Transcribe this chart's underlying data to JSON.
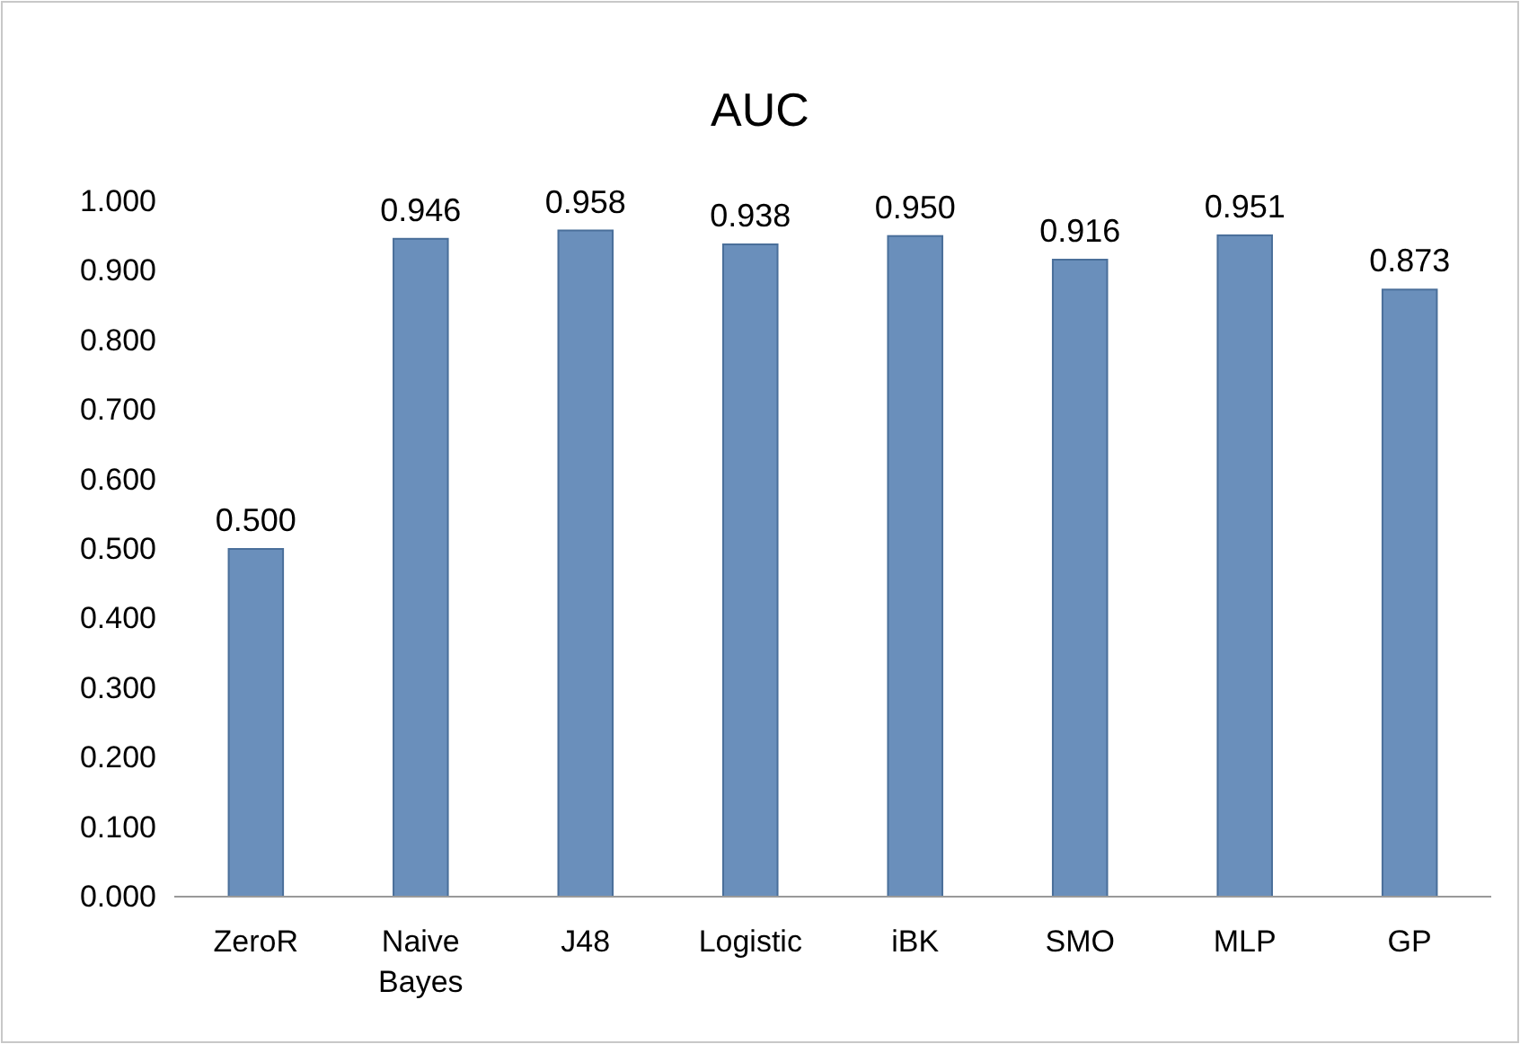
{
  "chart_data": {
    "type": "bar",
    "title": "AUC",
    "categories": [
      "ZeroR",
      "Naive Bayes",
      "J48",
      "Logistic",
      "iBK",
      "SMO",
      "MLP",
      "GP"
    ],
    "values": [
      0.5,
      0.946,
      0.958,
      0.938,
      0.95,
      0.916,
      0.951,
      0.873
    ],
    "value_labels": [
      "0.500",
      "0.946",
      "0.958",
      "0.938",
      "0.950",
      "0.916",
      "0.951",
      "0.873"
    ],
    "color": "#6a8fbb",
    "ylim": [
      0,
      1
    ],
    "yticks": [
      {
        "value": 0,
        "label": "0.000"
      },
      {
        "value": 0.1,
        "label": "0.100"
      },
      {
        "value": 0.2,
        "label": "0.200"
      },
      {
        "value": 0.3,
        "label": "0.300"
      },
      {
        "value": 0.4,
        "label": "0.400"
      },
      {
        "value": 0.5,
        "label": "0.500"
      },
      {
        "value": 0.6,
        "label": "0.600"
      },
      {
        "value": 0.7,
        "label": "0.700"
      },
      {
        "value": 0.8,
        "label": "0.800"
      },
      {
        "value": 0.9,
        "label": "0.900"
      },
      {
        "value": 1,
        "label": "1.000"
      }
    ],
    "grid": false
  }
}
